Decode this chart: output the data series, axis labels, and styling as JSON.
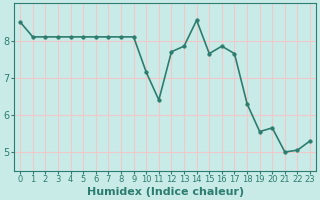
{
  "x": [
    0,
    1,
    2,
    3,
    4,
    5,
    6,
    7,
    8,
    9,
    10,
    11,
    12,
    13,
    14,
    15,
    16,
    17,
    18,
    19,
    20,
    21,
    22,
    23
  ],
  "y": [
    8.5,
    8.1,
    8.1,
    8.1,
    8.1,
    8.1,
    8.1,
    8.1,
    8.1,
    8.1,
    7.15,
    6.4,
    7.7,
    7.85,
    8.55,
    7.65,
    7.85,
    7.65,
    6.3,
    5.55,
    5.65,
    5.0,
    5.05,
    5.3
  ],
  "line_color": "#2d7d6e",
  "marker": "o",
  "marker_size": 2.5,
  "bg_color": "#c8ebe8",
  "grid_color": "#f0c8c8",
  "tick_color": "#2d7d6e",
  "xlabel": "Humidex (Indice chaleur)",
  "xlabel_fontsize": 8,
  "xlim": [
    -0.5,
    23.5
  ],
  "ylim": [
    4.5,
    9.0
  ],
  "yticks": [
    5,
    6,
    7,
    8
  ],
  "xticks": [
    0,
    1,
    2,
    3,
    4,
    5,
    6,
    7,
    8,
    9,
    10,
    11,
    12,
    13,
    14,
    15,
    16,
    17,
    18,
    19,
    20,
    21,
    22,
    23
  ],
  "line_width": 1.2,
  "spine_color": "#2d7d6e"
}
